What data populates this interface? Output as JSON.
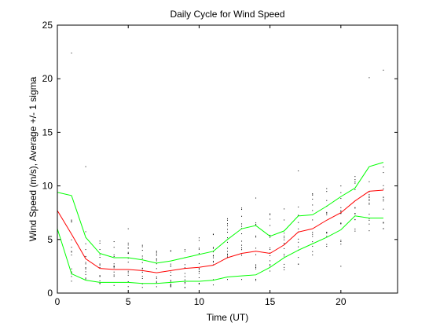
{
  "chart_data": {
    "type": "line",
    "title": "Daily Cycle for Wind Speed",
    "xlabel": "Time (UT)",
    "ylabel": "Wind Speed (m/s), Average +/- 1 sigma",
    "xlim": [
      0,
      24
    ],
    "ylim": [
      0,
      25
    ],
    "xticks": [
      0,
      5,
      10,
      15,
      20
    ],
    "yticks": [
      0,
      5,
      10,
      15,
      20,
      25
    ],
    "grid": false,
    "x": [
      0,
      1,
      2,
      3,
      4,
      5,
      6,
      7,
      8,
      9,
      10,
      11,
      12,
      13,
      14,
      15,
      16,
      17,
      18,
      19,
      20,
      21,
      22,
      23
    ],
    "series": [
      {
        "color": "#ff0000",
        "values": [
          7.7,
          5.5,
          3.2,
          2.3,
          2.2,
          2.2,
          2.1,
          1.9,
          2.1,
          2.3,
          2.4,
          2.6,
          3.3,
          3.7,
          3.9,
          3.7,
          4.5,
          5.7,
          6.0,
          6.8,
          7.5,
          8.6,
          9.5,
          9.6
        ]
      },
      {
        "color": "#00ff00",
        "values": [
          9.4,
          9.1,
          5.2,
          3.7,
          3.3,
          3.3,
          3.1,
          2.8,
          3.0,
          3.3,
          3.6,
          3.9,
          5.0,
          6.0,
          6.3,
          5.3,
          5.8,
          7.2,
          7.3,
          8.1,
          9.0,
          9.8,
          11.8,
          12.2
        ]
      },
      {
        "color": "#00ff00",
        "values": [
          6.0,
          1.8,
          1.2,
          1.0,
          1.0,
          1.0,
          0.9,
          0.9,
          1.0,
          1.1,
          1.1,
          1.2,
          1.5,
          1.6,
          1.7,
          2.4,
          3.3,
          4.0,
          4.6,
          5.2,
          5.9,
          7.2,
          7.0,
          7.0
        ]
      }
    ],
    "scatter_points": {
      "color": "#000000",
      "ranges": [
        [
          1,
          9.5
        ],
        [
          0.8,
          7.0
        ],
        [
          0.5,
          5.8
        ],
        [
          0.5,
          5.2
        ],
        [
          0.5,
          5.0
        ],
        [
          0.5,
          4.8
        ],
        [
          0.5,
          4.5
        ],
        [
          0.5,
          4.3
        ],
        [
          0.5,
          4.6
        ],
        [
          0.5,
          5.0
        ],
        [
          0.5,
          5.5
        ],
        [
          0.6,
          6.0
        ],
        [
          0.8,
          7.0
        ],
        [
          0.9,
          8.0
        ],
        [
          1.0,
          9.2
        ],
        [
          1.5,
          8.0
        ],
        [
          2.0,
          8.5
        ],
        [
          2.5,
          9.0
        ],
        [
          3.0,
          9.5
        ],
        [
          3.5,
          10.0
        ],
        [
          4.0,
          10.5
        ],
        [
          5.5,
          11.0
        ],
        [
          5.5,
          11.5
        ],
        [
          6.0,
          12.0
        ]
      ],
      "outliers": [
        [
          1,
          22.4
        ],
        [
          2,
          11.8
        ],
        [
          17,
          11.4
        ],
        [
          22,
          20.1
        ],
        [
          23,
          20.8
        ],
        [
          5,
          6.0
        ],
        [
          20,
          2.5
        ]
      ]
    }
  }
}
